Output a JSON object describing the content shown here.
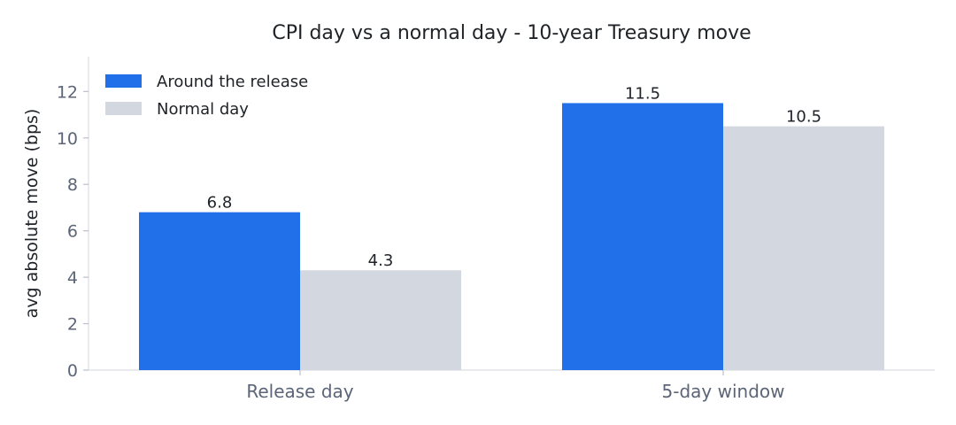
{
  "chart_data": {
    "type": "bar",
    "title": "CPI day vs a normal day - 10-year Treasury move",
    "xlabel": "",
    "ylabel": "avg absolute move (bps)",
    "categories": [
      "Release day",
      "5-day window"
    ],
    "series": [
      {
        "name": "Around the release",
        "values": [
          6.8,
          11.5
        ],
        "color": "#2170ea"
      },
      {
        "name": "Normal day",
        "values": [
          4.3,
          10.5
        ],
        "color": "#d3d8e0"
      }
    ],
    "data_labels": [
      [
        "6.8",
        "11.5"
      ],
      [
        "4.3",
        "10.5"
      ]
    ],
    "ylim": [
      0,
      13.5
    ],
    "yticks": [
      0,
      2,
      4,
      6,
      8,
      10,
      12
    ],
    "ytick_labels": [
      "0",
      "2",
      "4",
      "6",
      "8",
      "10",
      "12"
    ],
    "grid": false,
    "legend": "top-left"
  }
}
